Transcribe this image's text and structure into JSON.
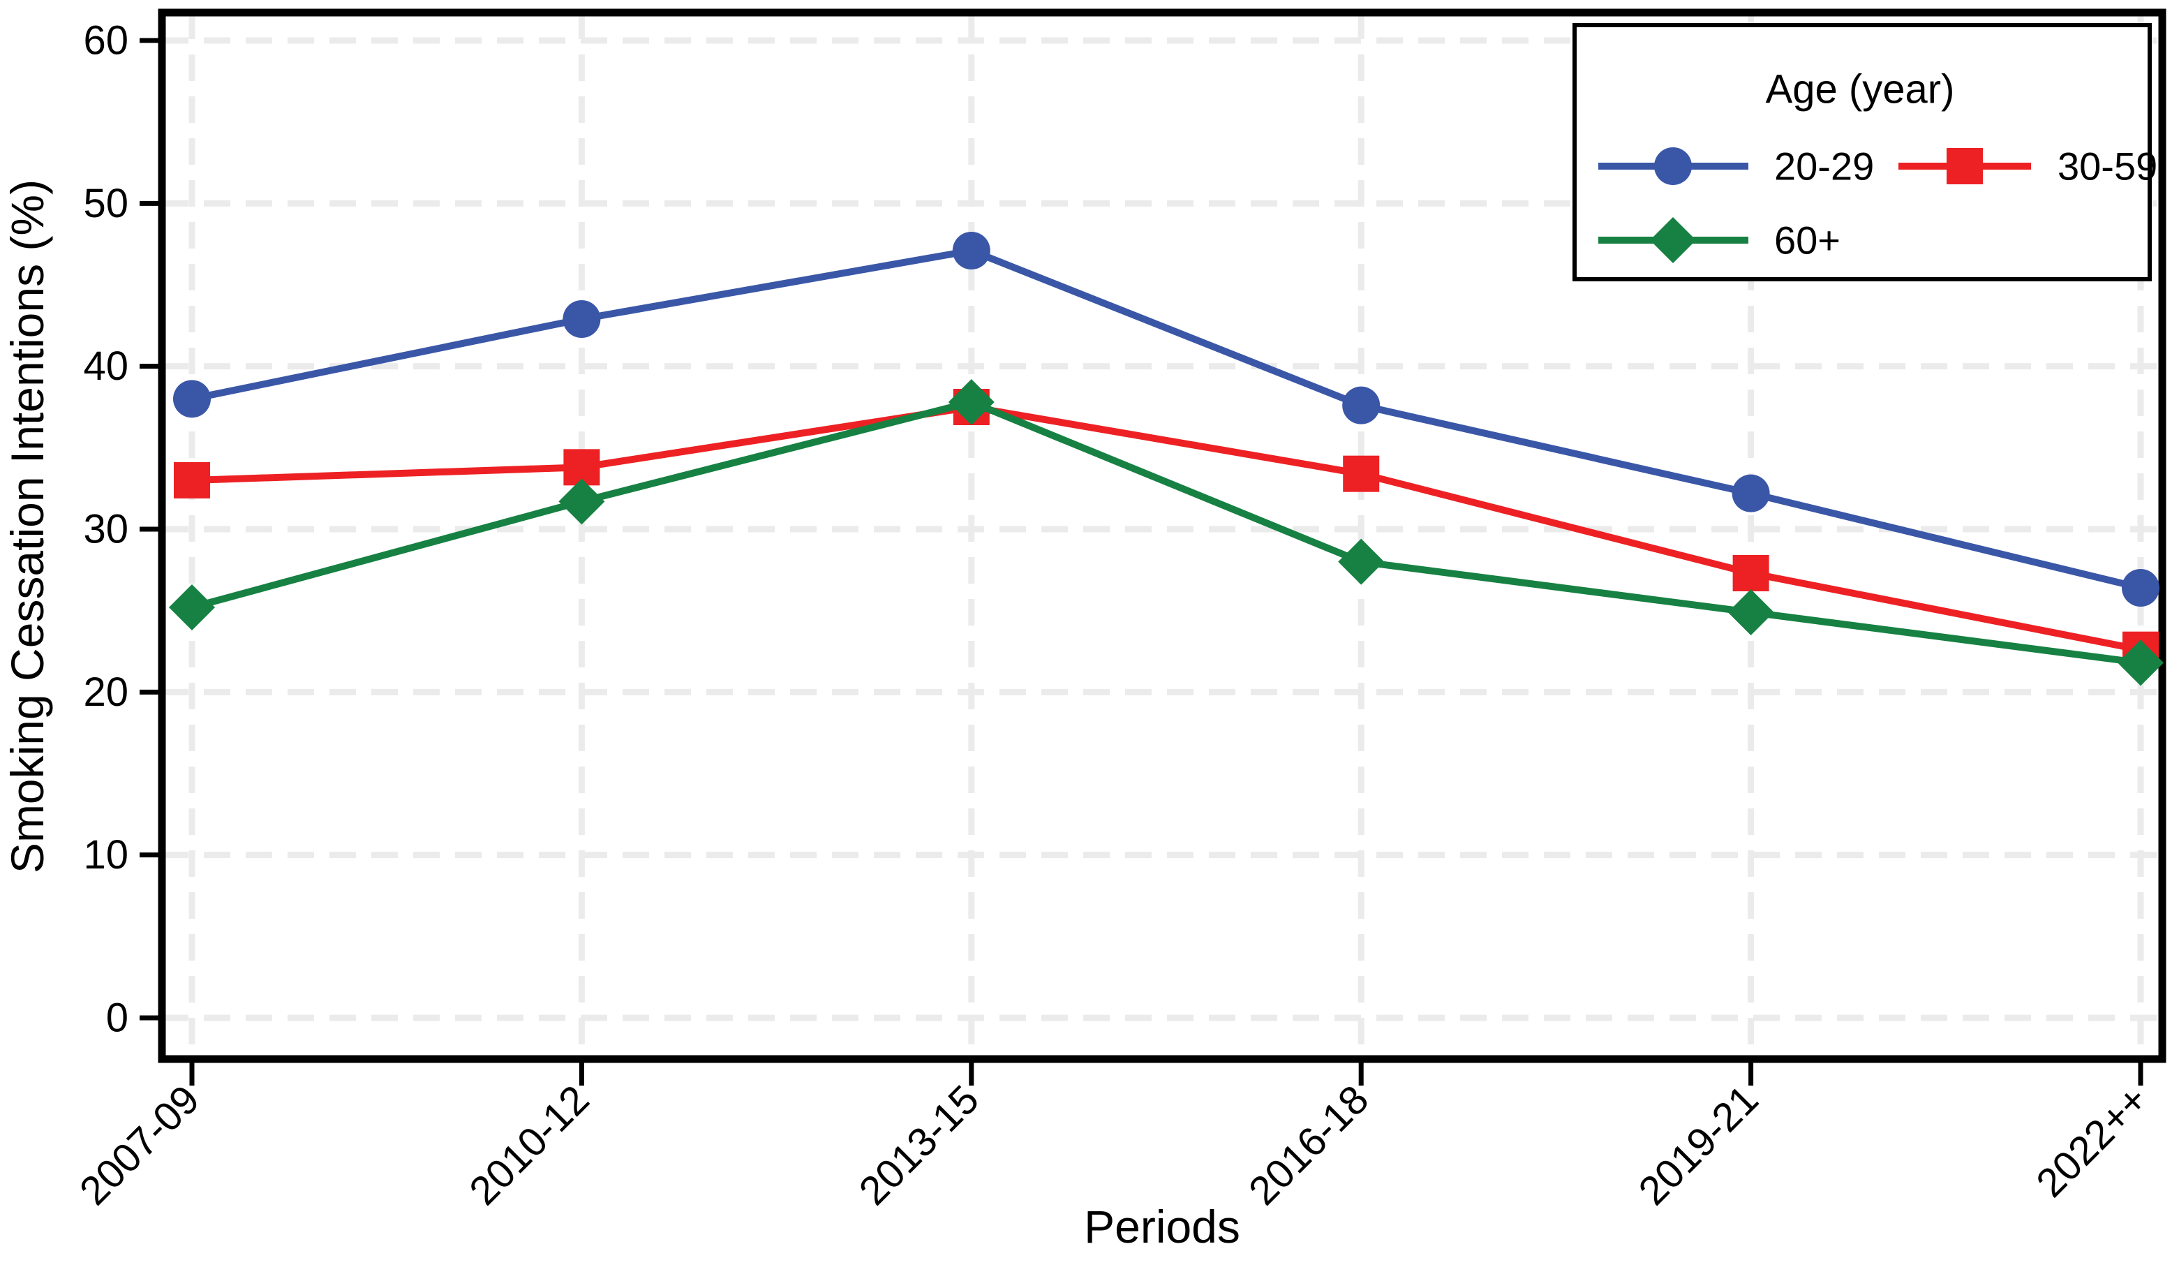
{
  "chart_data": {
    "type": "line",
    "title": "",
    "xlabel": "Periods",
    "ylabel": "Smoking Cessation Intentions (%)",
    "categories": [
      "2007-09",
      "2010-12",
      "2013-15",
      "2016-18",
      "2019-21",
      "2022++"
    ],
    "series": [
      {
        "name": "20-29",
        "marker": "circle",
        "color": "#3A57A7",
        "values": [
          38.0,
          42.9,
          47.1,
          37.6,
          32.2,
          26.4
        ]
      },
      {
        "name": "30-59",
        "marker": "square",
        "color": "#ED2124",
        "values": [
          33.0,
          33.8,
          37.5,
          33.4,
          27.3,
          22.6
        ]
      },
      {
        "name": "60+",
        "marker": "diamond",
        "color": "#168142",
        "values": [
          25.2,
          31.7,
          37.8,
          28.0,
          24.9,
          21.8
        ]
      }
    ],
    "legend": {
      "title": "Age (year)",
      "position": "top-right"
    },
    "ylim": [
      0,
      60
    ],
    "yticks": [
      0,
      10,
      20,
      30,
      40,
      50,
      60
    ],
    "grid": "dashed",
    "grid_color": "#EBEBEB",
    "frame_color": "#000000",
    "background_color": "#FFFFFF"
  }
}
